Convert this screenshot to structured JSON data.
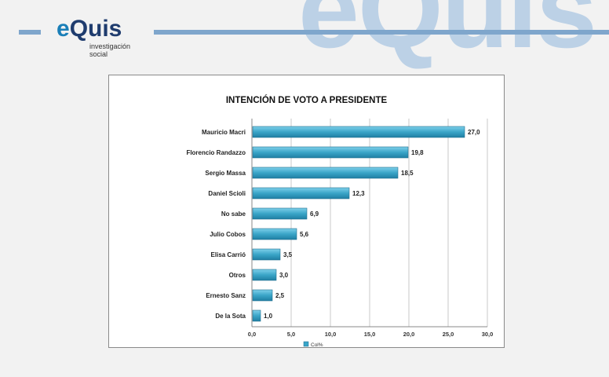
{
  "brand": {
    "name_e": "e",
    "name_rest": "Quis",
    "tagline_line1": "investigación",
    "tagline_line2": "social",
    "watermark": "eQuis",
    "accent": "#1a7fb8",
    "dark": "#1f3c6e"
  },
  "chart_data": {
    "type": "bar",
    "orientation": "horizontal",
    "title": "INTENCIÓN DE VOTO A PRESIDENTE",
    "categories": [
      "Mauricio Macri",
      "Florencio Randazzo",
      "Sergio Massa",
      "Daniel Scioli",
      "No sabe",
      "Julio Cobos",
      "Elisa Carrió",
      "Otros",
      "Ernesto Sanz",
      "De la Sota"
    ],
    "series": [
      {
        "name": "Col%",
        "values": [
          27.0,
          19.8,
          18.5,
          12.3,
          6.9,
          5.6,
          3.5,
          3.0,
          2.5,
          1.0
        ],
        "color": "#3aa5c8"
      }
    ],
    "data_labels": [
      "27,0",
      "19,8",
      "18,5",
      "12,3",
      "6,9",
      "5,6",
      "3,5",
      "3,0",
      "2,5",
      "1,0"
    ],
    "xlim": [
      0,
      30
    ],
    "xticks": [
      0,
      5,
      10,
      15,
      20,
      25,
      30
    ],
    "xtick_labels": [
      "0,0",
      "5,0",
      "10,0",
      "15,0",
      "20,0",
      "25,0",
      "30,0"
    ],
    "grid": true,
    "legend": "bottom"
  }
}
